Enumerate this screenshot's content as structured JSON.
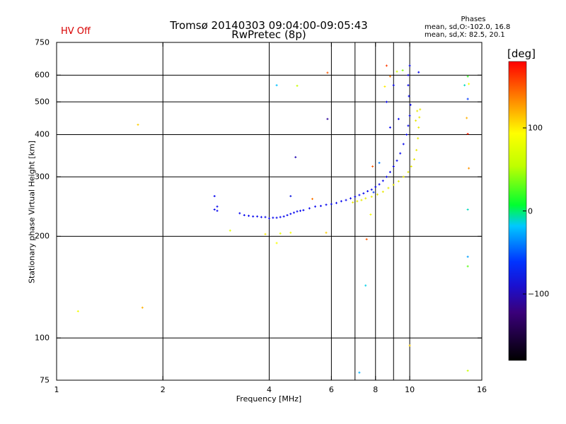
{
  "header": {
    "title_line1": "Tromsø 20140303 09:04:00-09:05:43",
    "title_line2": "RwPretec (8p)",
    "hv_status": "HV Off",
    "phases_title": "Phases",
    "phases_o": "mean, sd,O:-102.0, 16.8",
    "phases_x": "mean, sd,X:  82.5, 20.1"
  },
  "colors": {
    "o_mode": "#0000ee",
    "x_mode": "#e8e800",
    "hv_text": "#d80000"
  },
  "chart_data": {
    "type": "scatter",
    "title": "Tromsø 20140303 09:04:00-09:05:43",
    "subtitle": "RwPretec (8p)",
    "xlabel": "Frequency [MHz]",
    "ylabel": "Stationary phase Virtual Height [km]",
    "xscale": "log",
    "yscale": "log",
    "xlim": [
      1,
      16
    ],
    "ylim": [
      75,
      750
    ],
    "xticks": [
      1,
      2,
      4,
      6,
      8,
      10,
      16
    ],
    "xtick_labels": [
      "1",
      "2",
      "4",
      "6",
      "8",
      "10",
      "16"
    ],
    "yticks": [
      75,
      100,
      200,
      300,
      400,
      500,
      600,
      750
    ],
    "ytick_labels": [
      "75",
      "100",
      "200",
      "300",
      "400",
      "500",
      "600",
      "750"
    ],
    "xgrid": [
      2,
      4,
      6,
      7,
      8,
      9,
      10
    ],
    "ygrid": [
      100,
      200,
      300,
      400,
      500,
      600
    ],
    "colorbar": {
      "label": "[deg]",
      "range": [
        -180,
        180
      ],
      "ticks": [
        100,
        0,
        -100
      ],
      "tick_labels": [
        "100",
        "0",
        "−100"
      ]
    },
    "o_trace": {
      "phase": -102,
      "points": [
        [
          2.8,
          263
        ],
        [
          2.8,
          240
        ],
        [
          2.85,
          238
        ],
        [
          3.3,
          234
        ],
        [
          3.4,
          231
        ],
        [
          3.5,
          230
        ],
        [
          3.6,
          229
        ],
        [
          3.7,
          229
        ],
        [
          3.8,
          228
        ],
        [
          3.9,
          228
        ],
        [
          4.0,
          226
        ],
        [
          4.1,
          227
        ],
        [
          4.2,
          227
        ],
        [
          4.3,
          228
        ],
        [
          4.4,
          229
        ],
        [
          4.5,
          231
        ],
        [
          4.6,
          233
        ],
        [
          4.7,
          235
        ],
        [
          4.8,
          237
        ],
        [
          4.9,
          238
        ],
        [
          5.0,
          239
        ],
        [
          5.2,
          242
        ],
        [
          5.4,
          245
        ],
        [
          5.6,
          246
        ],
        [
          5.8,
          248
        ],
        [
          6.0,
          249
        ],
        [
          6.2,
          251
        ],
        [
          6.4,
          254
        ],
        [
          6.6,
          256
        ],
        [
          6.8,
          259
        ],
        [
          7.0,
          262
        ],
        [
          7.2,
          265
        ],
        [
          7.4,
          268
        ],
        [
          7.6,
          272
        ],
        [
          7.8,
          275
        ],
        [
          8.0,
          280
        ],
        [
          8.2,
          285
        ],
        [
          8.4,
          292
        ],
        [
          8.6,
          300
        ],
        [
          8.8,
          310
        ],
        [
          9.0,
          322
        ],
        [
          9.2,
          335
        ],
        [
          9.4,
          352
        ],
        [
          9.6,
          375
        ],
        [
          9.8,
          400
        ],
        [
          9.9,
          425
        ],
        [
          10.0,
          455
        ],
        [
          10.05,
          490
        ],
        [
          9.95,
          520
        ],
        [
          9.9,
          560
        ],
        [
          9.9,
          600
        ],
        [
          10.0,
          640
        ],
        [
          9.3,
          445
        ],
        [
          8.8,
          420
        ],
        [
          10.6,
          612
        ],
        [
          8.6,
          500
        ],
        [
          9.0,
          560
        ],
        [
          2.85,
          245
        ]
      ]
    },
    "x_trace": {
      "phase": 82,
      "points": [
        [
          6.9,
          252
        ],
        [
          7.1,
          254
        ],
        [
          7.3,
          256
        ],
        [
          7.5,
          259
        ],
        [
          7.8,
          262
        ],
        [
          8.1,
          266
        ],
        [
          8.4,
          271
        ],
        [
          8.7,
          278
        ],
        [
          9.0,
          284
        ],
        [
          9.3,
          291
        ],
        [
          9.6,
          300
        ],
        [
          9.9,
          310
        ],
        [
          10.1,
          322
        ],
        [
          10.3,
          338
        ],
        [
          10.45,
          360
        ],
        [
          10.55,
          390
        ],
        [
          10.6,
          420
        ],
        [
          10.65,
          450
        ],
        [
          10.7,
          475
        ],
        [
          10.5,
          470
        ],
        [
          10.4,
          440
        ]
      ]
    },
    "stray_points": [
      {
        "x": 1.15,
        "y": 120,
        "phase": 85
      },
      {
        "x": 1.7,
        "y": 428,
        "phase": 110
      },
      {
        "x": 1.75,
        "y": 123,
        "phase": 120
      },
      {
        "x": 4.2,
        "y": 560,
        "phase": -20
      },
      {
        "x": 4.8,
        "y": 558,
        "phase": 60
      },
      {
        "x": 4.75,
        "y": 343,
        "phase": -100
      },
      {
        "x": 4.6,
        "y": 263,
        "phase": -80
      },
      {
        "x": 5.85,
        "y": 610,
        "phase": 150
      },
      {
        "x": 5.85,
        "y": 445,
        "phase": -110
      },
      {
        "x": 3.1,
        "y": 208,
        "phase": 75
      },
      {
        "x": 3.9,
        "y": 203,
        "phase": 100
      },
      {
        "x": 4.2,
        "y": 191,
        "phase": 90
      },
      {
        "x": 4.6,
        "y": 205,
        "phase": 90
      },
      {
        "x": 4.3,
        "y": 204,
        "phase": 80
      },
      {
        "x": 5.8,
        "y": 205,
        "phase": 110
      },
      {
        "x": 5.3,
        "y": 258,
        "phase": 140
      },
      {
        "x": 7.2,
        "y": 79,
        "phase": -25
      },
      {
        "x": 7.5,
        "y": 143,
        "phase": -15
      },
      {
        "x": 7.55,
        "y": 196,
        "phase": 150
      },
      {
        "x": 7.75,
        "y": 232,
        "phase": 90
      },
      {
        "x": 7.85,
        "y": 322,
        "phase": 150
      },
      {
        "x": 8.5,
        "y": 555,
        "phase": 100
      },
      {
        "x": 8.6,
        "y": 640,
        "phase": 160
      },
      {
        "x": 8.8,
        "y": 595,
        "phase": 140
      },
      {
        "x": 9.2,
        "y": 615,
        "phase": 70
      },
      {
        "x": 9.55,
        "y": 620,
        "phase": 40
      },
      {
        "x": 10.0,
        "y": 95,
        "phase": 110
      },
      {
        "x": 14.3,
        "y": 560,
        "phase": -10
      },
      {
        "x": 14.6,
        "y": 595,
        "phase": 20
      },
      {
        "x": 14.7,
        "y": 565,
        "phase": 90
      },
      {
        "x": 14.6,
        "y": 510,
        "phase": -60
      },
      {
        "x": 14.5,
        "y": 448,
        "phase": 120
      },
      {
        "x": 14.6,
        "y": 402,
        "phase": 170
      },
      {
        "x": 14.7,
        "y": 318,
        "phase": 130
      },
      {
        "x": 14.6,
        "y": 240,
        "phase": -10
      },
      {
        "x": 14.6,
        "y": 174,
        "phase": -30
      },
      {
        "x": 14.6,
        "y": 163,
        "phase": 30
      },
      {
        "x": 14.6,
        "y": 80,
        "phase": 60
      },
      {
        "x": 8.2,
        "y": 330,
        "phase": -40
      },
      {
        "x": 7.9,
        "y": 270,
        "phase": -60
      }
    ]
  }
}
